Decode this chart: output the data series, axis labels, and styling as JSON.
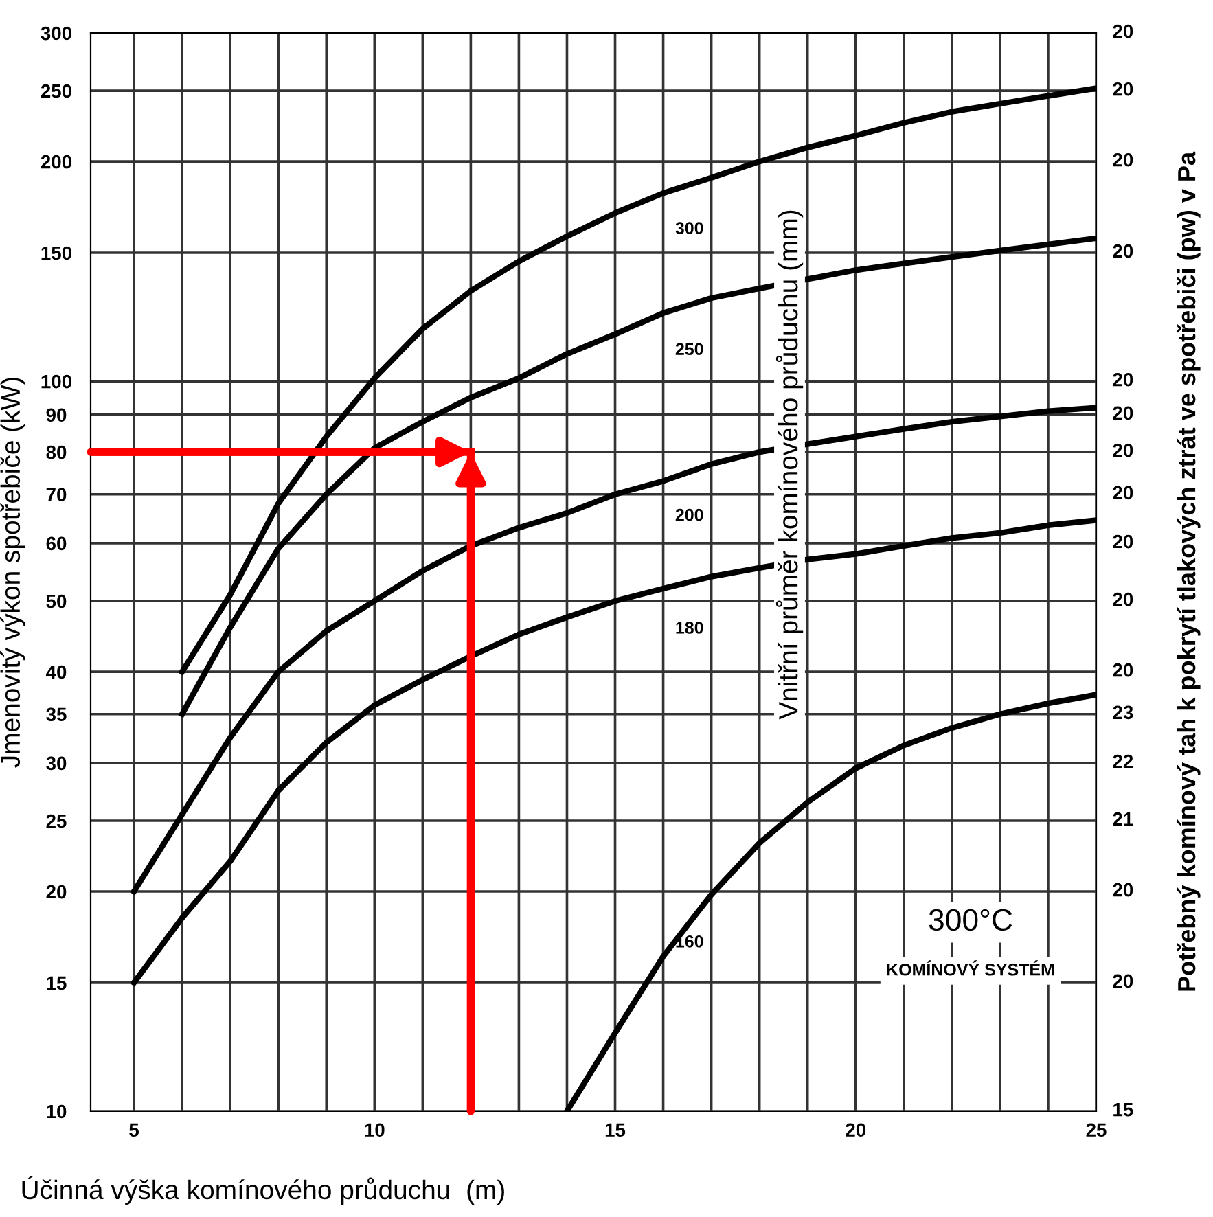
{
  "chart_data": {
    "type": "line",
    "xlabel": "Účinná výška komínového průduchu  (m)",
    "ylabel": "Jmenovitý výkon spotřebiče (kW)",
    "y2label": "Potřebný komínový tah k pokrytí tlakových ztrát ve spotřebiči (pw) v Pa",
    "legend_title": "Vnitřní průměr komínového průduchu (mm)",
    "annotations": [
      "300°C",
      "KOMÍNOVÝ SYSTÉM",
      "20",
      "20",
      "20",
      "20",
      "20",
      "20",
      "20",
      "20",
      "20",
      "20",
      "20",
      "23",
      "22",
      "21",
      "20",
      "20",
      "15"
    ],
    "log": "y",
    "grid": true,
    "legend": false,
    "marker": "none",
    "line_style": "solid",
    "xlim": [
      4.1,
      25
    ],
    "ylim": [
      10,
      300
    ],
    "xticks": [
      5,
      {
        "value": 6,
        "label": null
      },
      {
        "value": 7,
        "label": null
      },
      {
        "value": 8,
        "label": null
      },
      {
        "value": 9,
        "label": null
      },
      10,
      {
        "value": 11,
        "label": null
      },
      {
        "value": 12,
        "label": null
      },
      {
        "value": 13,
        "label": null
      },
      {
        "value": 14,
        "label": null
      },
      15,
      {
        "value": 16,
        "label": null
      },
      {
        "value": 17,
        "label": null
      },
      {
        "value": 18,
        "label": null
      },
      {
        "value": 19,
        "label": null
      },
      20,
      {
        "value": 21,
        "label": null
      },
      {
        "value": 22,
        "label": null
      },
      {
        "value": 23,
        "label": null
      },
      {
        "value": 24,
        "label": null
      },
      25
    ],
    "yticks": [
      10,
      15,
      20,
      25,
      30,
      35,
      40,
      50,
      60,
      70,
      80,
      90,
      100,
      150,
      200,
      250,
      300
    ],
    "series": [
      {
        "name": "300",
        "color": "#000000",
        "x": [
          6,
          7,
          8,
          9,
          10,
          11,
          12,
          13,
          14,
          15,
          16,
          17,
          18,
          19,
          20,
          21,
          22,
          23,
          24,
          25
        ],
        "values": [
          40,
          51,
          68,
          84,
          101,
          118,
          133,
          146,
          158,
          170,
          181,
          190,
          200,
          209,
          217,
          226,
          234,
          240,
          246,
          252
        ]
      },
      {
        "name": "250",
        "color": "#000000",
        "x": [
          6,
          7,
          8,
          9,
          10,
          11,
          12,
          13,
          14,
          15,
          16,
          17,
          18,
          19,
          20,
          21,
          22,
          23,
          24,
          25
        ],
        "values": [
          35,
          46,
          59,
          70,
          81,
          88,
          95,
          101,
          109,
          116,
          124,
          130,
          134,
          138,
          142,
          145,
          148,
          151,
          154,
          157
        ]
      },
      {
        "name": "200",
        "color": "#000000",
        "x": [
          5,
          6,
          7,
          8,
          9,
          10,
          11,
          12,
          13,
          14,
          15,
          16,
          17,
          18,
          19,
          20,
          21,
          22,
          23,
          24,
          25
        ],
        "values": [
          20,
          25.5,
          32.5,
          40,
          45.5,
          50,
          55,
          59.5,
          63,
          66,
          70,
          73,
          77,
          80,
          82,
          84,
          86,
          88,
          89.5,
          91,
          92
        ]
      },
      {
        "name": "180",
        "color": "#000000",
        "x": [
          5,
          6,
          7,
          8,
          9,
          10,
          11,
          12,
          13,
          14,
          15,
          16,
          17,
          18,
          19,
          20,
          21,
          22,
          23,
          24,
          25
        ],
        "values": [
          15,
          18.4,
          22,
          27.5,
          32,
          36,
          39,
          42,
          45,
          47.5,
          50,
          52,
          54,
          55.5,
          57,
          58,
          59.5,
          61,
          62,
          63.5,
          64.5
        ]
      },
      {
        "name": "160",
        "color": "#000000",
        "x": [
          14,
          15,
          16,
          17,
          18,
          19,
          20,
          21,
          22,
          23,
          24,
          25
        ],
        "values": [
          10,
          12.8,
          16.3,
          19.8,
          23.3,
          26.5,
          29.5,
          31.7,
          33.5,
          35,
          36.2,
          37.2
        ]
      },
      {
        "color": "#ff0000",
        "x": [
          4.1,
          12
        ],
        "values": [
          80,
          80
        ]
      },
      {
        "color": "#ff0000",
        "x": [
          12,
          12
        ],
        "values": [
          10,
          80
        ]
      }
    ]
  }
}
